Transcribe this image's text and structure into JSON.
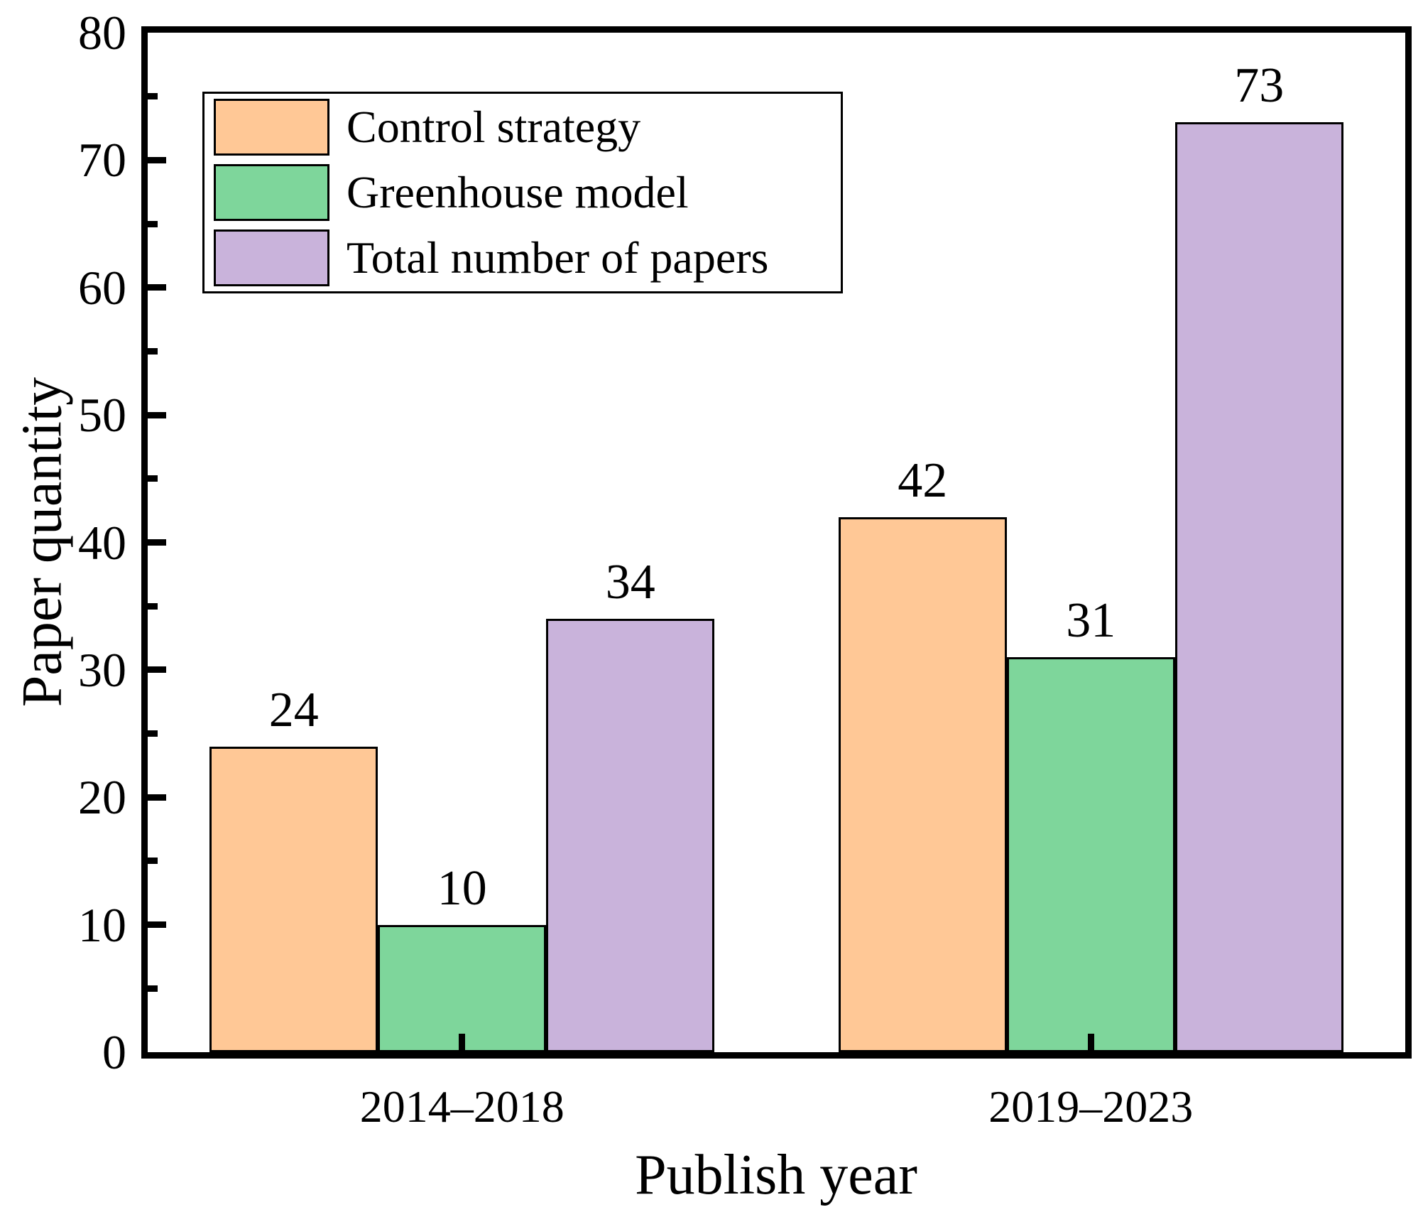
{
  "chart_data": {
    "type": "bar",
    "title": "",
    "xlabel": "Publish year",
    "ylabel": "Paper quantity",
    "categories": [
      "2014–2018",
      "2019–2023"
    ],
    "series": [
      {
        "name": "Control strategy",
        "color": "#ffc896",
        "values": [
          24,
          42
        ]
      },
      {
        "name": "Greenhouse model",
        "color": "#7ed69b",
        "values": [
          10,
          31
        ]
      },
      {
        "name": "Total number of papers",
        "color": "#c9b3db",
        "values": [
          34,
          73
        ]
      }
    ],
    "ylim": [
      0,
      80
    ],
    "y_major_tick_step": 10,
    "y_minor_tick_step": 5,
    "y_tick_labels": [
      "0",
      "10",
      "20",
      "30",
      "40",
      "50",
      "60",
      "70",
      "80"
    ],
    "show_value_labels": true,
    "legend_position": "top-left",
    "grid": false,
    "axis_color": "#000000",
    "bar_border_color": "#000000",
    "background_color": "#ffffff",
    "text_color": "#000000"
  }
}
